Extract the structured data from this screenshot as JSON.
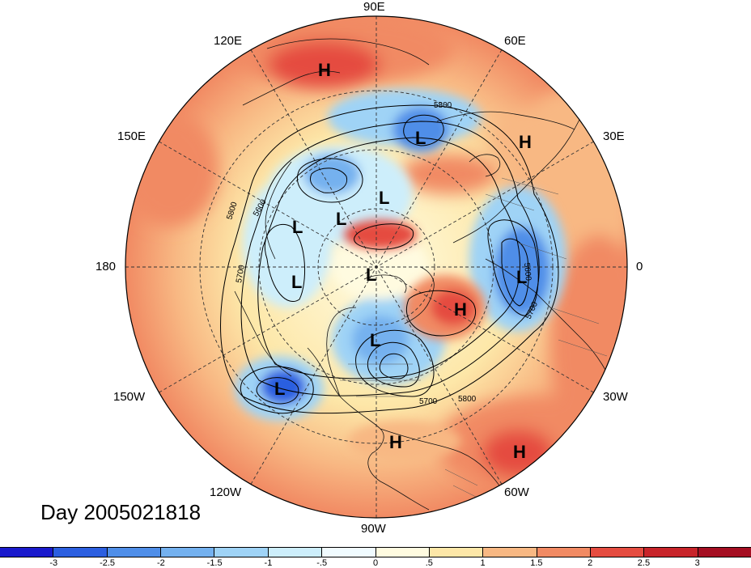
{
  "day_label": "Day 2005021818",
  "longitude_labels": {
    "e90": "90E",
    "e60": "60E",
    "e120": "120E",
    "e30": "30E",
    "e150": "150E",
    "deg180": "180",
    "deg0": "0",
    "w150": "150W",
    "w30": "30W",
    "w120": "120W",
    "w60": "60W",
    "w90": "90W"
  },
  "pressure_centers": [
    {
      "letter": "H"
    },
    {
      "letter": "L"
    },
    {
      "letter": "H"
    },
    {
      "letter": "L"
    },
    {
      "letter": "L"
    },
    {
      "letter": "L"
    },
    {
      "letter": "L"
    },
    {
      "letter": "L"
    },
    {
      "letter": "L"
    },
    {
      "letter": "H"
    },
    {
      "letter": "L"
    },
    {
      "letter": "L"
    },
    {
      "letter": "H"
    },
    {
      "letter": "H"
    }
  ],
  "contour_labels": [
    "5800",
    "5800",
    "5600",
    "5700",
    "5600",
    "5700",
    "5700",
    "5800"
  ],
  "colorbar": {
    "ticks": [
      "-3",
      "-2.5",
      "-2",
      "-1.5",
      "-1",
      "-.5",
      "0",
      ".5",
      "1",
      "1.5",
      "2",
      "2.5",
      "3"
    ],
    "colors": [
      "#1a1acd",
      "#2c5fe0",
      "#4f8ee8",
      "#74b1ef",
      "#9fd3f6",
      "#cdeefb",
      "#f0fbff",
      "#fffbe0",
      "#fde7a8",
      "#f8b883",
      "#f18a63",
      "#e54c40",
      "#c8242a",
      "#a50f22"
    ]
  }
}
